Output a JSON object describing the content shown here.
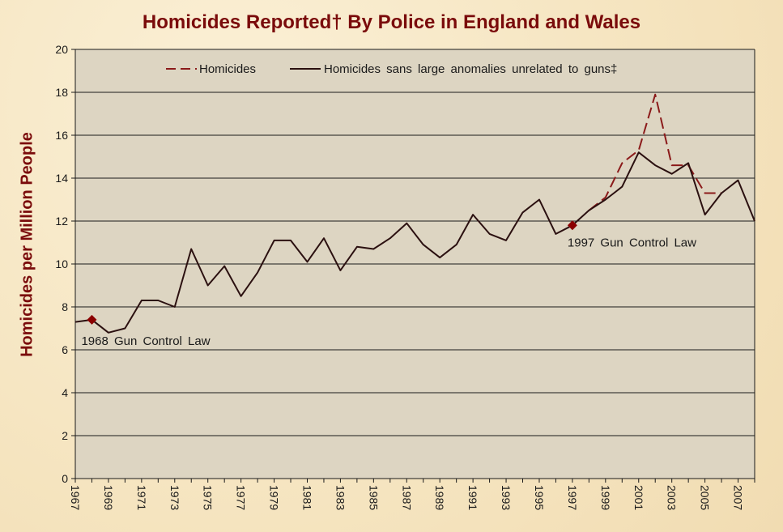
{
  "chart_data": {
    "type": "line",
    "title": "Homicides Reported† By Police in England and Wales",
    "ylabel": "Homicides per Million People",
    "xlabel": "",
    "ylim": [
      0,
      20
    ],
    "yticks": [
      0,
      2,
      4,
      6,
      8,
      10,
      12,
      14,
      16,
      18,
      20
    ],
    "xlim": [
      1967,
      2008
    ],
    "xticks": [
      1967,
      1969,
      1971,
      1973,
      1975,
      1977,
      1979,
      1981,
      1983,
      1985,
      1987,
      1989,
      1991,
      1993,
      1995,
      1997,
      1999,
      2001,
      2003,
      2005,
      2007
    ],
    "grid": "horizontal",
    "legend_position": "top",
    "series": [
      {
        "name": "Homicides",
        "style": "dashed",
        "color": "#8b1a1a",
        "x": [
          1998,
          1999,
          2000,
          2001,
          2002,
          2003,
          2004,
          2005,
          2006
        ],
        "values": [
          12.5,
          13.1,
          14.7,
          15.3,
          17.9,
          14.6,
          14.6,
          13.3,
          13.3
        ]
      },
      {
        "name": "Homicides sans large anomalies unrelated to guns‡",
        "style": "solid",
        "color": "#2b1010",
        "x": [
          1967,
          1968,
          1969,
          1970,
          1971,
          1972,
          1973,
          1974,
          1975,
          1976,
          1977,
          1978,
          1979,
          1980,
          1981,
          1982,
          1983,
          1984,
          1985,
          1986,
          1987,
          1988,
          1989,
          1990,
          1991,
          1992,
          1993,
          1994,
          1995,
          1996,
          1997,
          1998,
          1999,
          2000,
          2001,
          2002,
          2003,
          2004,
          2005,
          2006,
          2007,
          2008
        ],
        "values": [
          7.3,
          7.4,
          6.8,
          7.0,
          8.3,
          8.3,
          8.0,
          10.7,
          9.0,
          9.9,
          8.5,
          9.6,
          11.1,
          11.1,
          10.1,
          11.2,
          9.7,
          10.8,
          10.7,
          11.2,
          11.9,
          10.9,
          10.3,
          10.9,
          12.3,
          11.4,
          11.1,
          12.4,
          13.0,
          11.4,
          11.8,
          12.5,
          13.0,
          13.6,
          15.2,
          14.6,
          14.2,
          14.7,
          12.3,
          13.3,
          13.9,
          12.0
        ]
      }
    ],
    "annotations": [
      {
        "text": "1968 Gun Control Law",
        "x": 1968,
        "y": 7.4,
        "marker_color": "#8b0000"
      },
      {
        "text": "1997 Gun Control Law",
        "x": 1997,
        "y": 11.8,
        "marker_color": "#8b0000"
      }
    ],
    "colors": {
      "plot_background": "#ddd5c2",
      "gridline": "#1a1a1a",
      "title": "#7a0b0b",
      "axis_text": "#1a1a1a"
    }
  }
}
